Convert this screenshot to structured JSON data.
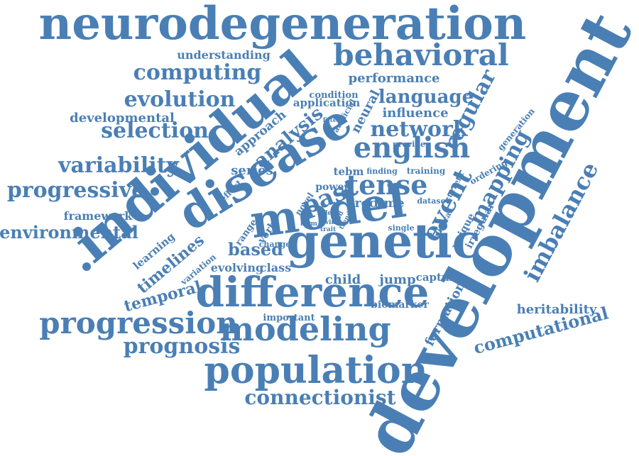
{
  "color": "#4a7fb5",
  "words": [
    "neurodegeneration",
    "development",
    "individual",
    "disease",
    "genetic",
    "model",
    "difference",
    "behavioral",
    "population",
    "modeling",
    "progression",
    "english",
    "computing",
    "past",
    "tense",
    "network",
    "evolution",
    "language",
    "regular",
    "progressive",
    "variability",
    "selection",
    "event",
    "mapping",
    "imbalance",
    "environmental",
    "prognosis",
    "connectionist",
    "computational",
    "analysis",
    "heritability",
    "timelines",
    "based",
    "temporal",
    "developmental",
    "performance",
    "influence",
    "understanding",
    "framework",
    "neural",
    "series",
    "child",
    "jump",
    "time",
    "proc",
    "class",
    "evolving",
    "capture",
    "formation",
    "learning",
    "biomarker",
    "important",
    "approach",
    "application",
    "condition",
    "tebm",
    "power",
    "generation",
    "ordering",
    "training",
    "finding",
    "dataset",
    "artificial",
    "provide",
    "effect",
    "novel",
    "verb",
    "range",
    "change",
    "variation",
    "unique",
    "irregular",
    "clinical",
    "current",
    "single",
    "twin",
    "trait",
    "filter",
    "form",
    "rule",
    "lead",
    "trend"
  ]
}
